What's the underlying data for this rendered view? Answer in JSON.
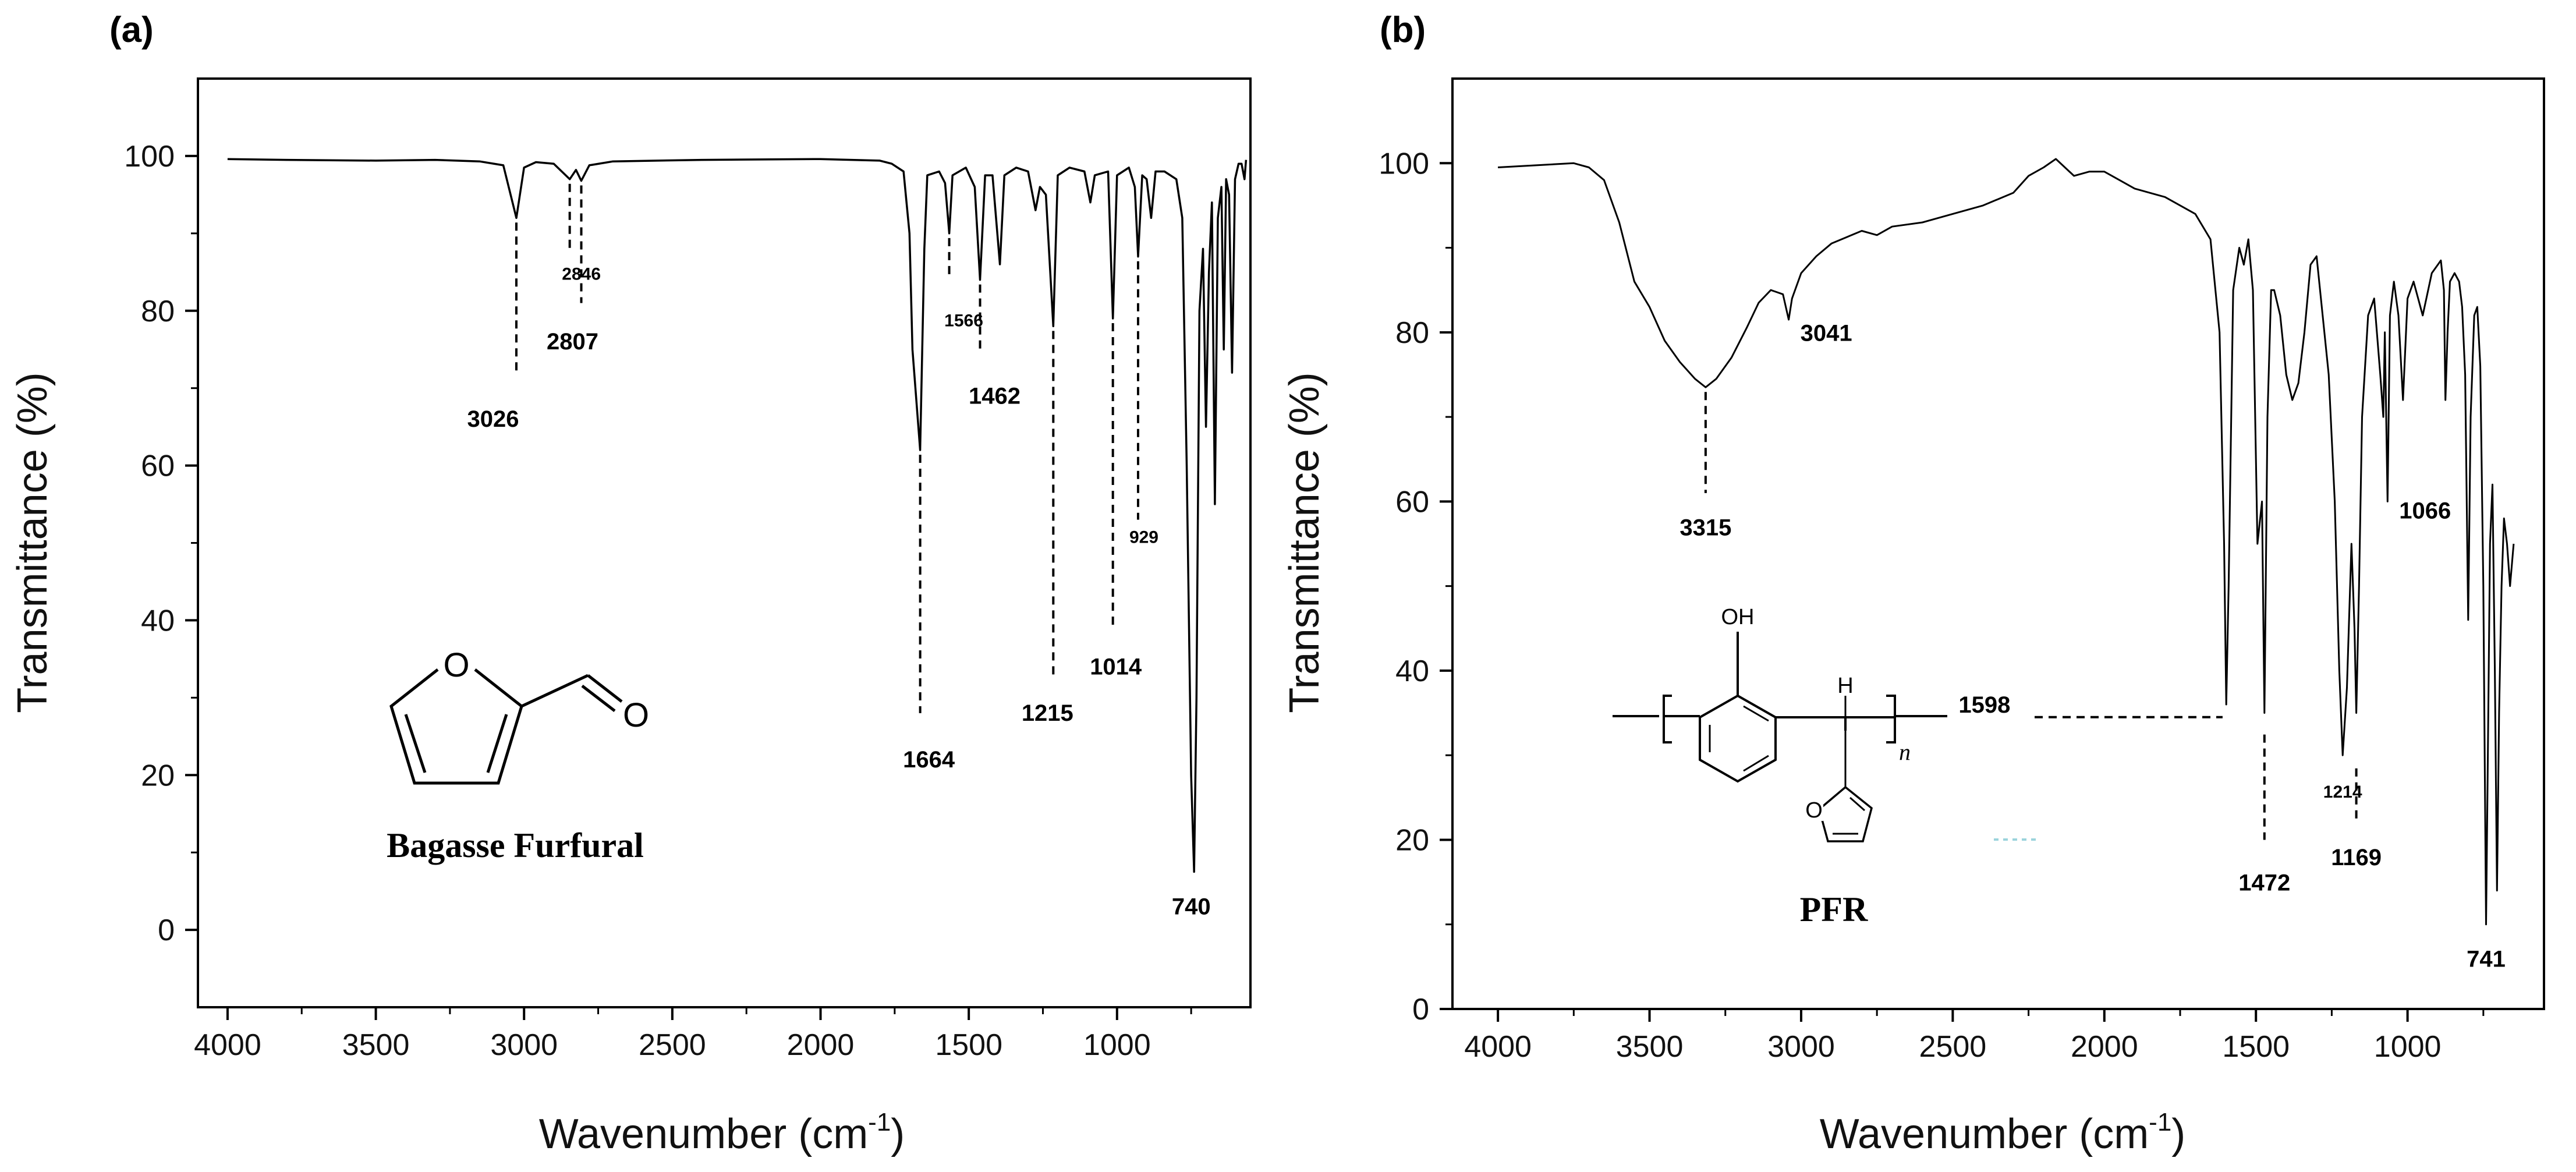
{
  "chart_data": [
    {
      "panel": "(a)",
      "type": "line",
      "xlabel": "Wavenumber (cm",
      "xlabel_sup": "-1",
      "xlabel_end": ")",
      "ylabel": "Transmittance (%)",
      "xlim": [
        4100,
        550
      ],
      "ylim": [
        -10,
        110
      ],
      "xticks": [
        4000,
        3500,
        3000,
        2500,
        2000,
        1500,
        1000
      ],
      "xtick_labels": [
        "4000",
        "3500",
        "3000",
        "2500",
        "2000",
        "1500",
        "1000"
      ],
      "yticks": [
        0,
        20,
        40,
        60,
        80,
        100
      ],
      "ytick_labels": [
        "0",
        "20",
        "40",
        "60",
        "80",
        "100"
      ],
      "spectrum": [
        [
          4000,
          99.6
        ],
        [
          3800,
          99.5
        ],
        [
          3500,
          99.4
        ],
        [
          3300,
          99.5
        ],
        [
          3150,
          99.3
        ],
        [
          3070,
          98.8
        ],
        [
          3026,
          92
        ],
        [
          3000,
          98.5
        ],
        [
          2960,
          99.2
        ],
        [
          2900,
          99.0
        ],
        [
          2846,
          97.0
        ],
        [
          2825,
          98.2
        ],
        [
          2807,
          96.8
        ],
        [
          2780,
          98.8
        ],
        [
          2700,
          99.3
        ],
        [
          2400,
          99.5
        ],
        [
          2000,
          99.6
        ],
        [
          1800,
          99.4
        ],
        [
          1760,
          99.0
        ],
        [
          1720,
          98.0
        ],
        [
          1700,
          90
        ],
        [
          1690,
          75
        ],
        [
          1664,
          62
        ],
        [
          1650,
          88
        ],
        [
          1640,
          97.5
        ],
        [
          1600,
          98
        ],
        [
          1580,
          96.5
        ],
        [
          1566,
          90
        ],
        [
          1555,
          97.5
        ],
        [
          1510,
          98.5
        ],
        [
          1480,
          96
        ],
        [
          1462,
          84
        ],
        [
          1445,
          97.5
        ],
        [
          1420,
          97.5
        ],
        [
          1395,
          86
        ],
        [
          1380,
          97.5
        ],
        [
          1340,
          98.5
        ],
        [
          1300,
          98
        ],
        [
          1275,
          93
        ],
        [
          1260,
          96
        ],
        [
          1240,
          95
        ],
        [
          1215,
          78
        ],
        [
          1200,
          97.5
        ],
        [
          1160,
          98.5
        ],
        [
          1110,
          98
        ],
        [
          1090,
          94
        ],
        [
          1075,
          97.5
        ],
        [
          1030,
          98
        ],
        [
          1014,
          79
        ],
        [
          1000,
          97.5
        ],
        [
          960,
          98.5
        ],
        [
          940,
          96
        ],
        [
          929,
          87
        ],
        [
          915,
          97.5
        ],
        [
          900,
          97
        ],
        [
          885,
          92
        ],
        [
          870,
          98
        ],
        [
          840,
          98
        ],
        [
          800,
          97
        ],
        [
          780,
          92
        ],
        [
          765,
          60
        ],
        [
          750,
          20
        ],
        [
          740,
          7.5
        ],
        [
          732,
          30
        ],
        [
          722,
          80
        ],
        [
          710,
          88
        ],
        [
          700,
          65
        ],
        [
          690,
          85
        ],
        [
          680,
          94
        ],
        [
          670,
          55
        ],
        [
          660,
          92
        ],
        [
          648,
          96
        ],
        [
          640,
          75
        ],
        [
          632,
          97
        ],
        [
          622,
          95
        ],
        [
          612,
          72
        ],
        [
          602,
          97
        ],
        [
          590,
          99
        ],
        [
          580,
          99
        ],
        [
          570,
          97
        ],
        [
          565,
          99.5
        ]
      ],
      "annotations": [
        {
          "label": "3026",
          "x": 3026,
          "ytop": 92,
          "ybot": 72,
          "ty": 65,
          "small": false
        },
        {
          "label": "2846",
          "x": 2846,
          "ytop": 97,
          "ybot": 88,
          "ty": 84,
          "small": true
        },
        {
          "label": "2807",
          "x": 2807,
          "ytop": 96.8,
          "ybot": 81,
          "ty": 75,
          "small": false
        },
        {
          "label": "1566",
          "x": 1566,
          "ytop": 90,
          "ybot": 84,
          "ty": 78,
          "small": true
        },
        {
          "label": "1462",
          "x": 1462,
          "ytop": 84,
          "ybot": 75,
          "ty": 68,
          "small": false
        },
        {
          "label": "929",
          "x": 929,
          "ytop": 87,
          "ybot": 53,
          "ty": 50,
          "small": true
        },
        {
          "label": "1014",
          "x": 1014,
          "ytop": 79,
          "ybot": 39,
          "ty": 33,
          "small": false
        },
        {
          "label": "1215",
          "x": 1215,
          "ytop": 78,
          "ybot": 33,
          "ty": 27,
          "small": false
        },
        {
          "label": "1664",
          "x": 1664,
          "ytop": 62,
          "ybot": 28,
          "ty": 21,
          "small": false
        },
        {
          "label": "740",
          "x": 740,
          "ytop": 7.5,
          "ybot": 7.5,
          "ty": 2,
          "small": false
        }
      ],
      "structure_label": "Bagasse Furfural",
      "atom_O_ring": "O",
      "atom_O_ald": "O"
    },
    {
      "panel": "(b)",
      "type": "line",
      "xlabel": "Wavenumber (cm",
      "xlabel_sup": "-1",
      "xlabel_end": ")",
      "ylabel": "Transmittance (%)",
      "xlim": [
        4150,
        550
      ],
      "ylim": [
        0,
        110
      ],
      "xticks": [
        4000,
        3500,
        3000,
        2500,
        2000,
        1500,
        1000
      ],
      "xtick_labels": [
        "4000",
        "3500",
        "3000",
        "2500",
        "2000",
        "1500",
        "1000"
      ],
      "yticks": [
        0,
        20,
        40,
        60,
        80,
        100
      ],
      "ytick_labels": [
        "0",
        "20",
        "40",
        "60",
        "80",
        "100"
      ],
      "spectrum": [
        [
          4000,
          99.5
        ],
        [
          3900,
          99.7
        ],
        [
          3750,
          100
        ],
        [
          3700,
          99.5
        ],
        [
          3650,
          98
        ],
        [
          3600,
          93
        ],
        [
          3550,
          86
        ],
        [
          3500,
          83
        ],
        [
          3450,
          79
        ],
        [
          3400,
          76.5
        ],
        [
          3350,
          74.5
        ],
        [
          3315,
          73.5
        ],
        [
          3280,
          74.5
        ],
        [
          3230,
          77
        ],
        [
          3180,
          80.5
        ],
        [
          3140,
          83.5
        ],
        [
          3100,
          85
        ],
        [
          3060,
          84.5
        ],
        [
          3041,
          81.5
        ],
        [
          3030,
          84
        ],
        [
          3000,
          87
        ],
        [
          2950,
          89
        ],
        [
          2900,
          90.5
        ],
        [
          2800,
          92
        ],
        [
          2750,
          91.5
        ],
        [
          2700,
          92.5
        ],
        [
          2600,
          93
        ],
        [
          2500,
          94
        ],
        [
          2400,
          95
        ],
        [
          2300,
          96.5
        ],
        [
          2250,
          98.5
        ],
        [
          2200,
          99.5
        ],
        [
          2160,
          100.5
        ],
        [
          2100,
          98.5
        ],
        [
          2050,
          99
        ],
        [
          2000,
          99
        ],
        [
          1950,
          98
        ],
        [
          1900,
          97
        ],
        [
          1800,
          96
        ],
        [
          1700,
          94
        ],
        [
          1650,
          91
        ],
        [
          1620,
          80
        ],
        [
          1605,
          55
        ],
        [
          1598,
          36
        ],
        [
          1590,
          50
        ],
        [
          1575,
          85
        ],
        [
          1555,
          90
        ],
        [
          1540,
          88
        ],
        [
          1525,
          91
        ],
        [
          1510,
          85
        ],
        [
          1495,
          55
        ],
        [
          1480,
          60
        ],
        [
          1472,
          35
        ],
        [
          1462,
          70
        ],
        [
          1450,
          85
        ],
        [
          1440,
          85
        ],
        [
          1420,
          82
        ],
        [
          1400,
          75
        ],
        [
          1380,
          72
        ],
        [
          1360,
          74
        ],
        [
          1340,
          80
        ],
        [
          1320,
          88
        ],
        [
          1300,
          89
        ],
        [
          1280,
          82
        ],
        [
          1260,
          75
        ],
        [
          1240,
          60
        ],
        [
          1225,
          40
        ],
        [
          1214,
          30
        ],
        [
          1200,
          38
        ],
        [
          1185,
          55
        ],
        [
          1175,
          45
        ],
        [
          1169,
          35
        ],
        [
          1160,
          50
        ],
        [
          1150,
          70
        ],
        [
          1130,
          82
        ],
        [
          1110,
          84
        ],
        [
          1090,
          75
        ],
        [
          1080,
          70
        ],
        [
          1075,
          80
        ],
        [
          1066,
          60
        ],
        [
          1058,
          82
        ],
        [
          1045,
          86
        ],
        [
          1030,
          82
        ],
        [
          1015,
          72
        ],
        [
          1000,
          84
        ],
        [
          980,
          86
        ],
        [
          950,
          82
        ],
        [
          920,
          87
        ],
        [
          900,
          88
        ],
        [
          890,
          88.5
        ],
        [
          880,
          85
        ],
        [
          875,
          72
        ],
        [
          868,
          80
        ],
        [
          860,
          86
        ],
        [
          845,
          87
        ],
        [
          830,
          86
        ],
        [
          820,
          83
        ],
        [
          810,
          75
        ],
        [
          800,
          46
        ],
        [
          792,
          70
        ],
        [
          780,
          82
        ],
        [
          770,
          83
        ],
        [
          760,
          76
        ],
        [
          750,
          50
        ],
        [
          741,
          10
        ],
        [
          735,
          30
        ],
        [
          728,
          55
        ],
        [
          720,
          62
        ],
        [
          712,
          40
        ],
        [
          705,
          14
        ],
        [
          698,
          35
        ],
        [
          690,
          50
        ],
        [
          682,
          58
        ],
        [
          672,
          55
        ],
        [
          662,
          50
        ],
        [
          650,
          55
        ]
      ],
      "annotations": [
        {
          "label": "3315",
          "x": 3315,
          "ytop": 73.5,
          "ybot": 61,
          "ty": 56,
          "small": false
        },
        {
          "label": "3041",
          "x": 3041,
          "ytop": 80,
          "ybot": 80,
          "ty": 79,
          "small": false
        },
        {
          "label": "1598",
          "x": 1598,
          "ytop": 34.5,
          "ybot": 34.5,
          "ty": 35,
          "small": false
        },
        {
          "label": "1472",
          "x": 1472,
          "ytop": 33,
          "ybot": 20,
          "ty": 14,
          "small": false
        },
        {
          "label": "1214",
          "x": 1214,
          "ytop": 26,
          "ybot": 26,
          "ty": 25,
          "small": true
        },
        {
          "label": "1169",
          "x": 1169,
          "ytop": 29,
          "ybot": 22,
          "ty": 17,
          "small": false
        },
        {
          "label": "1066",
          "x": 1066,
          "ytop": 58,
          "ybot": 58,
          "ty": 58,
          "small": false
        },
        {
          "label": "741",
          "x": 741,
          "ytop": 10,
          "ybot": 10,
          "ty": 5,
          "small": false
        }
      ],
      "structure_label": "PFR",
      "atom_OH": "OH",
      "atom_H": "H",
      "atom_O_furan": "O",
      "subscript_n": "n"
    }
  ]
}
